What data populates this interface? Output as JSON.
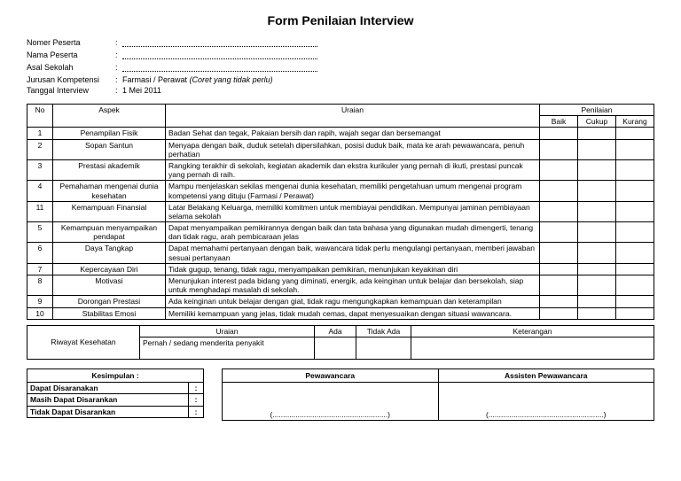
{
  "title": "Form Penilaian Interview",
  "info": {
    "nomer_label": "Nomer Peserta",
    "nama_label": "Nama Peserta",
    "asal_label": "Asal Sekolah",
    "jurusan_label": "Jurusan Kompetensi",
    "jurusan_value": "Farmasi / Perawat",
    "jurusan_note": "(Coret yang tidak perlu)",
    "tanggal_label": "Tanggal Interview",
    "tanggal_value": "1 Mei 2011",
    "colon": ":"
  },
  "headers": {
    "no": "No",
    "aspek": "Aspek",
    "uraian": "Uraian",
    "penilaian": "Penilaian",
    "baik": "Baik",
    "cukup": "Cukup",
    "kurang": "Kurang"
  },
  "rows": [
    {
      "no": "1",
      "aspek": "Penampilan Fisik",
      "uraian": "Badan Sehat dan tegak, Pakaian bersih dan rapih, wajah segar dan bersemangat"
    },
    {
      "no": "2",
      "aspek": "Sopan Santun",
      "uraian": "Menyapa dengan baik, duduk setelah dipersilahkan, posisi duduk baik, mata ke arah pewawancara, penuh perhatian"
    },
    {
      "no": "3",
      "aspek": "Prestasi akademik",
      "uraian": "Rangking terakhir di sekolah, kegiatan akademik dan ekstra kurikuler yang pernah di ikuti, prestasi puncak yang pernah di raih."
    },
    {
      "no": "4",
      "aspek": "Pemahaman mengenai dunia kesehatan",
      "uraian": "Mampu menjelaskan sekilas mengenai dunia kesehatan, memiliki pengetahuan umum mengenai program kompetensi yang dituju (Farmasi / Perawat)"
    },
    {
      "no": "11",
      "aspek": "Kemampuan Finansial",
      "uraian": "Latar Belakang Keluarga, memiliki komitmen untuk membiayai pendidikan. Mempunyai jaminan pembiayaan selama sekolah"
    },
    {
      "no": "5",
      "aspek": "Kemampuan menyampaikan pendapat",
      "uraian": "Dapat menyampaikan pemikirannya dengan baik dan tata bahasa yang digunakan mudah dimengerti, tenang dan tidak ragu, arah pembicaraan jelas"
    },
    {
      "no": "6",
      "aspek": "Daya Tangkap",
      "uraian": "Dapat memahami pertanyaan dengan baik, wawancara tidak perlu mengulangi pertanyaan, memberi jawaban sesuai pertanyaan"
    },
    {
      "no": "7",
      "aspek": "Kepercayaan Diri",
      "uraian": "Tidak gugup, tenang, tidak ragu, menyampaikan pemikiran, menunjukan keyakinan diri"
    },
    {
      "no": "8",
      "aspek": "Motivasi",
      "uraian": "Menunjukan interest pada bidang yang diminati, energik, ada keinginan untuk belajar dan bersekolah, siap untuk menghadapi masalah di sekolah."
    },
    {
      "no": "9",
      "aspek": "Dorongan Prestasi",
      "uraian": "Ada keinginan untuk belajar dengan giat, tidak ragu mengungkapkan kemampuan dan keterampilan"
    },
    {
      "no": "10",
      "aspek": "Stabilitas Emosi",
      "uraian": "Memiliki kemampuan yang jelas, tidak mudah cemas, dapat menyesuaikan dengan situasi wawancara."
    }
  ],
  "health": {
    "label": "Riwayat Kesehatan",
    "uraian_h": "Uraian",
    "ada_h": "Ada",
    "tidak_h": "Tidak Ada",
    "ket_h": "Keterangan",
    "item": "Pernah / sedang menderita penyakit"
  },
  "kesimpulan": {
    "title": "Kesimpulan :",
    "r1": "Dapat Disaranakan",
    "r2": "Masih Dapat Disarankan",
    "r3": "Tidak Dapat Disarankan",
    "colon": ":"
  },
  "sign": {
    "p1": "Pewawancara",
    "p2": "Assisten Pewawancara",
    "line": "(.......................................................)"
  }
}
